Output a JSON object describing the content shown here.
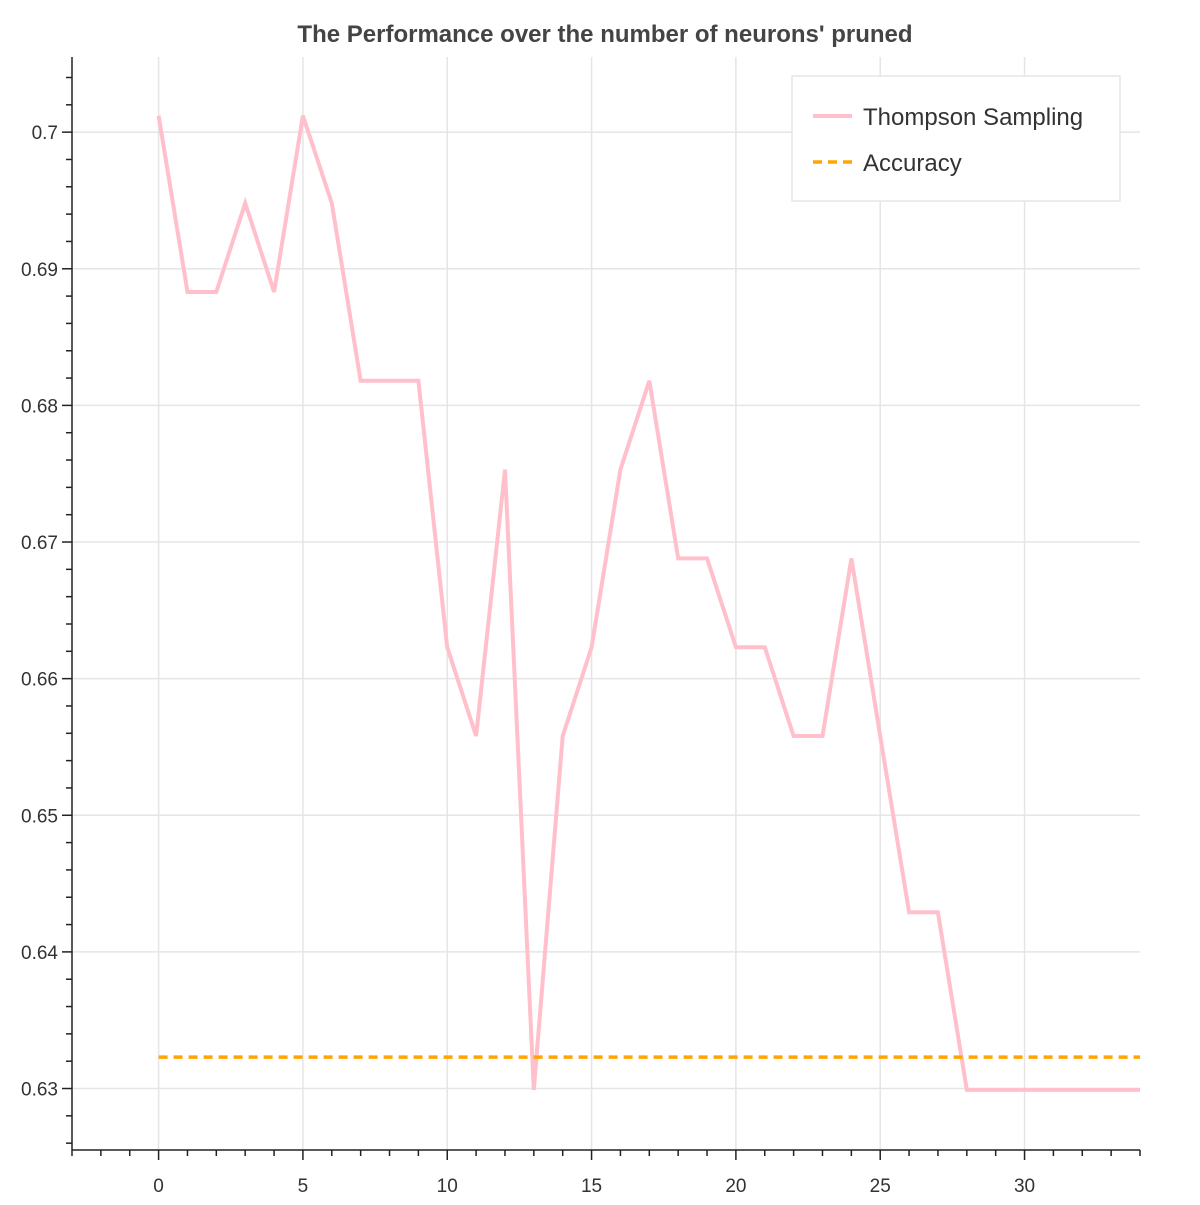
{
  "chart_data": {
    "type": "line",
    "title": "The Performance over the number of neurons' pruned",
    "xlabel": "",
    "ylabel": "",
    "xlim": [
      -3,
      34
    ],
    "ylim": [
      0.6255,
      0.7055
    ],
    "grid": true,
    "legend_position": "top-right",
    "x_ticks": [
      0,
      5,
      10,
      15,
      20,
      25,
      30
    ],
    "x_tick_labels": [
      "0",
      "5",
      "10",
      "15",
      "20",
      "25",
      "30"
    ],
    "y_ticks": [
      0.63,
      0.64,
      0.65,
      0.66,
      0.67,
      0.68,
      0.69,
      0.7
    ],
    "y_tick_labels": [
      "0.63",
      "0.64",
      "0.65",
      "0.66",
      "0.67",
      "0.68",
      "0.69",
      "0.7"
    ],
    "series": [
      {
        "name": "Thompson Sampling",
        "color": "#ffc0cb",
        "style": "solid",
        "x": [
          0,
          1,
          2,
          3,
          4,
          5,
          6,
          7,
          8,
          9,
          10,
          11,
          12,
          13,
          14,
          15,
          16,
          17,
          18,
          19,
          20,
          21,
          22,
          23,
          24,
          25,
          26,
          27,
          28,
          29,
          30,
          31,
          32,
          33,
          34
        ],
        "y": [
          0.7012,
          0.6883,
          0.6883,
          0.6948,
          0.6883,
          0.7012,
          0.6948,
          0.6818,
          0.6818,
          0.6818,
          0.6623,
          0.6558,
          0.6753,
          0.6299,
          0.6558,
          0.6623,
          0.6753,
          0.6818,
          0.6688,
          0.6688,
          0.6623,
          0.6623,
          0.6558,
          0.6558,
          0.6688,
          0.6558,
          0.6429,
          0.6429,
          0.6299,
          0.6299,
          0.6299,
          0.6299,
          0.6299,
          0.6299,
          0.6299
        ]
      },
      {
        "name": "Accuracy",
        "color": "#ffa500",
        "style": "dashed",
        "x": [
          0,
          34
        ],
        "y": [
          0.6323,
          0.6323
        ]
      }
    ]
  }
}
